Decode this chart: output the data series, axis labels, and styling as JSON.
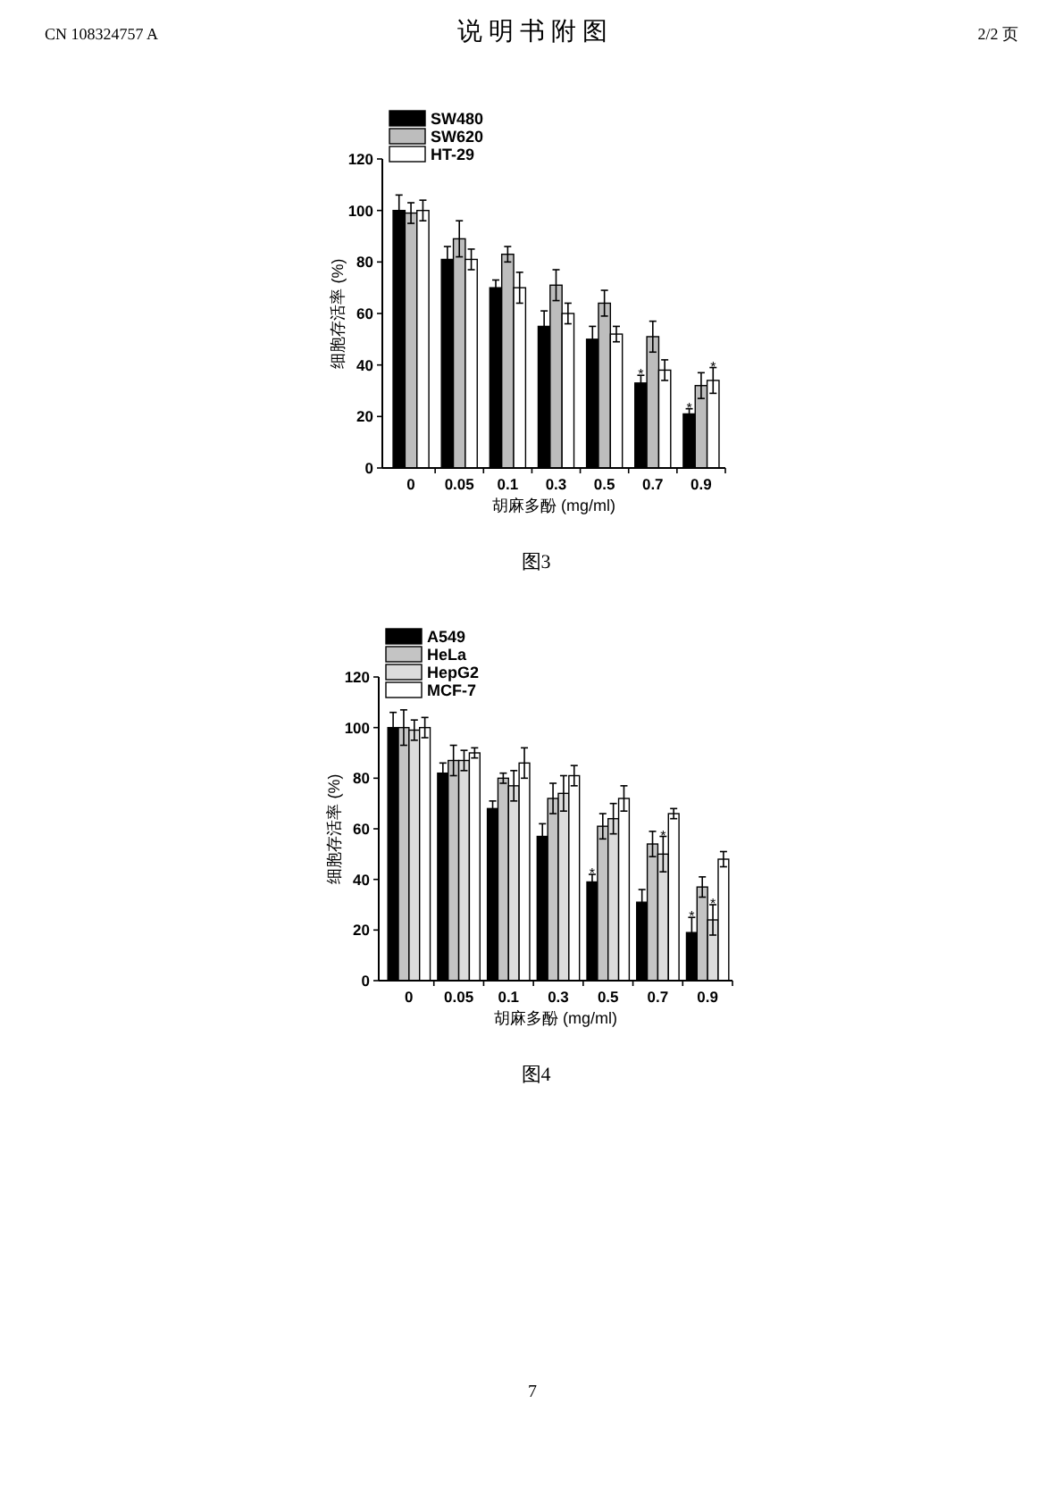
{
  "chart_data": [
    {
      "type": "bar",
      "title": "图3",
      "xlabel": "胡麻多酚 (mg/ml)",
      "ylabel": "细胞存活率 (%)",
      "categories": [
        "0",
        "0.05",
        "0.1",
        "0.3",
        "0.5",
        "0.7",
        "0.9"
      ],
      "series": [
        {
          "name": "SW480",
          "color": "#000000",
          "values": [
            100,
            81,
            70,
            55,
            50,
            33,
            21
          ],
          "errors": [
            6,
            5,
            3,
            6,
            5,
            3,
            2
          ],
          "value_labels": [
            null,
            null,
            null,
            null,
            null,
            "*",
            "*"
          ]
        },
        {
          "name": "SW620",
          "color": "#bdbdbd",
          "values": [
            99,
            89,
            83,
            71,
            64,
            51,
            32
          ],
          "errors": [
            4,
            7,
            3,
            6,
            5,
            6,
            5
          ]
        },
        {
          "name": "HT-29",
          "color": "#ffffff",
          "values": [
            100,
            81,
            70,
            60,
            52,
            38,
            34
          ],
          "errors": [
            4,
            4,
            6,
            4,
            3,
            4,
            5
          ],
          "value_labels": [
            null,
            null,
            null,
            null,
            null,
            null,
            "*"
          ]
        }
      ],
      "ylim": [
        0,
        120
      ],
      "yticks": [
        0,
        20,
        40,
        60,
        80,
        100,
        120
      ],
      "legend": "top left",
      "annotations": [
        "CN 108324757 A",
        "说 明 书 附 图",
        "2/2 页"
      ]
    },
    {
      "type": "bar",
      "title": "图4",
      "xlabel": "胡麻多酚 (mg/ml)",
      "ylabel": "细胞存活率 (%)",
      "categories": [
        "0",
        "0.05",
        "0.1",
        "0.3",
        "0.5",
        "0.7",
        "0.9"
      ],
      "series": [
        {
          "name": "A549",
          "color": "#000000",
          "values": [
            100,
            82,
            68,
            57,
            39,
            31,
            19
          ],
          "errors": [
            6,
            4,
            3,
            5,
            3,
            5,
            6
          ],
          "value_labels": [
            null,
            null,
            null,
            null,
            "*",
            null,
            "*"
          ]
        },
        {
          "name": "HeLa",
          "color": "#c4c4c4",
          "values": [
            100,
            87,
            80,
            72,
            61,
            54,
            37
          ],
          "errors": [
            7,
            6,
            2,
            6,
            5,
            5,
            4
          ]
        },
        {
          "name": "HepG2",
          "color": "#dcdcdc",
          "values": [
            99,
            87,
            77,
            74,
            64,
            50,
            24
          ],
          "errors": [
            4,
            4,
            6,
            7,
            6,
            7,
            6
          ],
          "value_labels": [
            null,
            null,
            null,
            null,
            null,
            "*",
            "*"
          ]
        },
        {
          "name": "MCF-7",
          "color": "#ffffff",
          "values": [
            100,
            90,
            86,
            81,
            72,
            66,
            48
          ],
          "errors": [
            4,
            2,
            6,
            4,
            5,
            2,
            3
          ]
        }
      ],
      "ylim": [
        0,
        120
      ],
      "yticks": [
        0,
        20,
        40,
        60,
        80,
        100,
        120
      ],
      "legend": "top left",
      "annotations": [
        "7"
      ]
    }
  ]
}
